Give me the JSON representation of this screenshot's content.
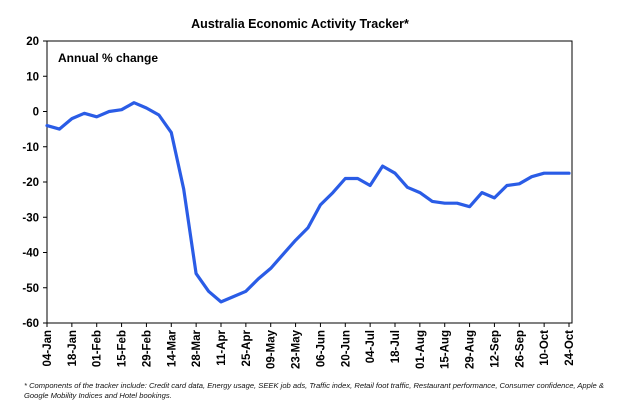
{
  "chart_data": {
    "type": "line",
    "title": "Australia Economic Activity Tracker*",
    "annotation": "Annual % change",
    "xlabel": "",
    "ylabel": "",
    "ylim": [
      -60,
      20
    ],
    "y_ticks": [
      20,
      10,
      0,
      -10,
      -20,
      -30,
      -40,
      -50,
      -60
    ],
    "x_tick_labels": [
      "04-Jan",
      "18-Jan",
      "01-Feb",
      "15-Feb",
      "29-Feb",
      "14-Mar",
      "28-Mar",
      "11-Apr",
      "25-Apr",
      "09-May",
      "23-May",
      "06-Jun",
      "20-Jun",
      "04-Jul",
      "18-Jul",
      "01-Aug",
      "15-Aug",
      "29-Aug",
      "12-Sep",
      "26-Sep",
      "10-Oct",
      "24-Oct"
    ],
    "grid": false,
    "line_color": "#2a5ce6",
    "series": [
      {
        "x": [
          "04-Jan",
          "11-Jan",
          "18-Jan",
          "25-Jan",
          "01-Feb",
          "08-Feb",
          "15-Feb",
          "22-Feb",
          "29-Feb",
          "07-Mar",
          "14-Mar",
          "21-Mar",
          "28-Mar",
          "04-Apr",
          "11-Apr",
          "18-Apr",
          "25-Apr",
          "02-May",
          "09-May",
          "16-May",
          "23-May",
          "30-May",
          "06-Jun",
          "13-Jun",
          "20-Jun",
          "27-Jun",
          "04-Jul",
          "11-Jul",
          "18-Jul",
          "25-Jul",
          "01-Aug",
          "08-Aug",
          "15-Aug",
          "22-Aug",
          "29-Aug",
          "05-Sep",
          "12-Sep",
          "19-Sep",
          "26-Sep",
          "03-Oct",
          "10-Oct",
          "17-Oct",
          "24-Oct"
        ],
        "values": [
          -4,
          -5,
          -2,
          -0.5,
          -1.5,
          0,
          0.5,
          2.5,
          1,
          -1,
          -6,
          -22,
          -46,
          -51,
          -54,
          -52.5,
          -51,
          -47.5,
          -44.5,
          -40.5,
          -36.5,
          -33,
          -26.5,
          -23,
          -19,
          -19,
          -21,
          -15.5,
          -17.5,
          -21.5,
          -23,
          -25.5,
          -26,
          -26,
          -27,
          -23,
          -24.5,
          -21,
          -20.5,
          -18.5,
          -17.5,
          -17.5,
          -17.5
        ]
      }
    ]
  },
  "footnote": "* Components of the tracker include: Credit card data, Energy usage, SEEK job ads, Traffic index, Retail foot traffic, Restaurant performance, Consumer confidence, Apple & Google Mobility Indices and Hotel bookings."
}
